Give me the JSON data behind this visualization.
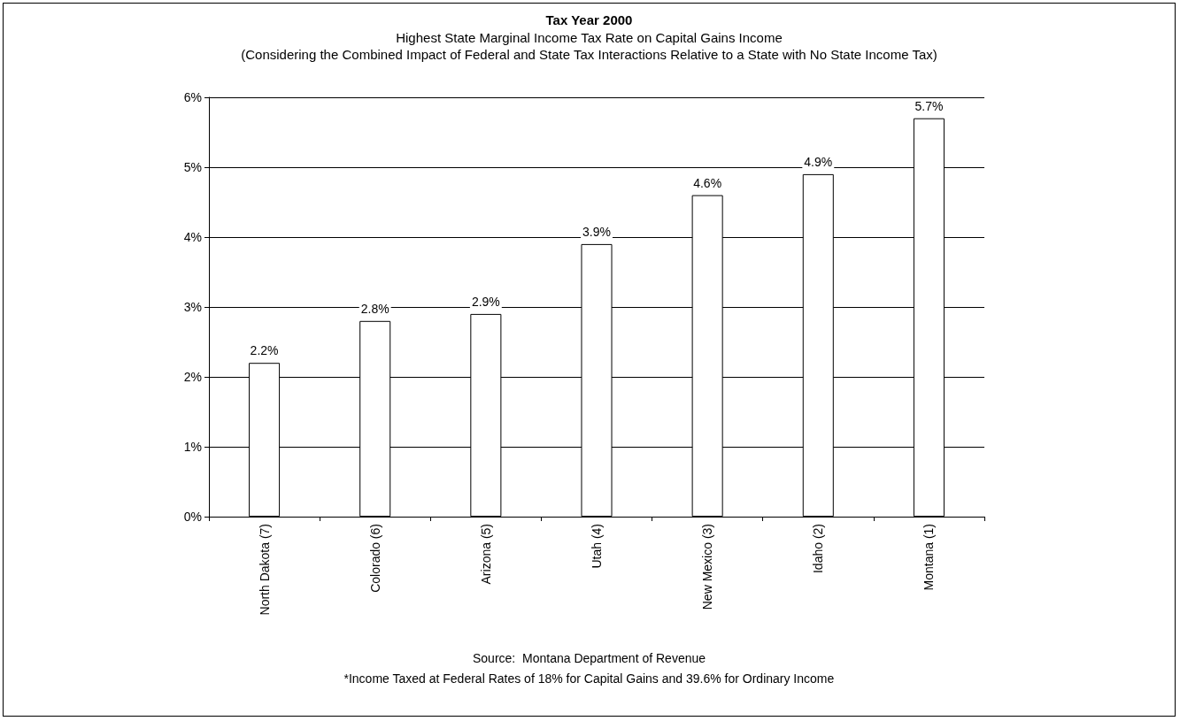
{
  "chart_data": {
    "type": "bar",
    "title": "Tax Year 2000",
    "subtitle": "Highest State Marginal Income Tax Rate on Capital Gains Income\n(Considering the Combined Impact of Federal and State Tax Interactions Relative to a State with No State Income Tax)",
    "categories": [
      "North Dakota (7)",
      "Colorado (6)",
      "Arizona (5)",
      "Utah (4)",
      "New Mexico (3)",
      "Idaho (2)",
      "Montana (1)"
    ],
    "values": [
      2.2,
      2.8,
      2.9,
      3.9,
      4.6,
      4.9,
      5.7
    ],
    "value_labels": [
      "2.2%",
      "2.8%",
      "2.9%",
      "3.9%",
      "4.6%",
      "4.9%",
      "5.7%"
    ],
    "color": "#ffffff",
    "ylim": [
      0,
      6
    ],
    "yticks": [
      {
        "value": 0,
        "label": "0%"
      },
      {
        "value": 1,
        "label": "1%"
      },
      {
        "value": 2,
        "label": "2%"
      },
      {
        "value": 3,
        "label": "3%"
      },
      {
        "value": 4,
        "label": "4%"
      },
      {
        "value": 5,
        "label": "5%"
      },
      {
        "value": 6,
        "label": "6%"
      }
    ],
    "grid": "y",
    "annotations": [
      "Source:  Montana Department of Revenue",
      "*Income Taxed at Federal Rates of 18% for Capital Gains and 39.6% for Ordinary Income"
    ]
  }
}
